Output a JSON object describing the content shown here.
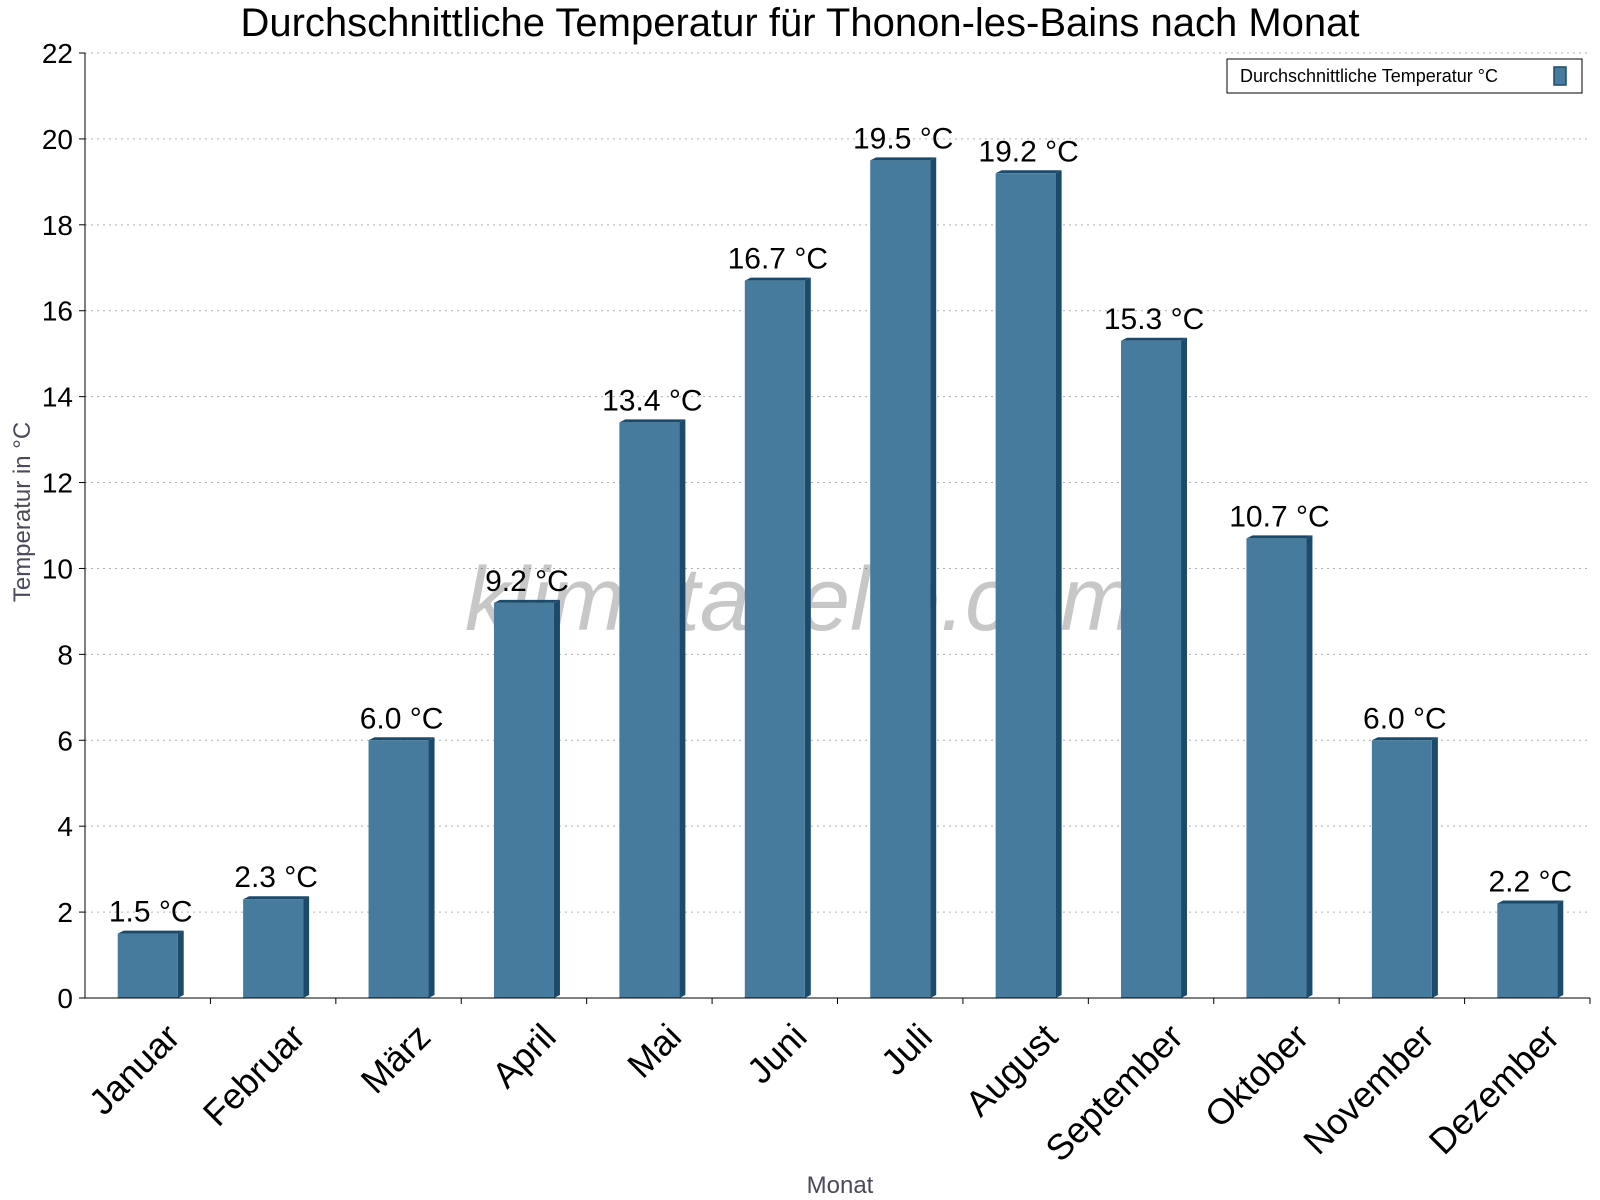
{
  "chart_data": {
    "type": "bar",
    "title": "Durchschnittliche Temperatur für Thonon-les-Bains nach Monat",
    "xlabel": "Monat",
    "ylabel": "Temperatur in °C",
    "categories": [
      "Januar",
      "Februar",
      "März",
      "April",
      "Mai",
      "Juni",
      "Juli",
      "August",
      "September",
      "Oktober",
      "November",
      "Dezember"
    ],
    "series": [
      {
        "name": "Durchschnittliche Temperatur °C",
        "values": [
          1.5,
          2.3,
          6.0,
          9.2,
          13.4,
          16.7,
          19.5,
          19.2,
          15.3,
          10.7,
          6.0,
          2.2
        ],
        "labels": [
          "1.5 °C",
          "2.3 °C",
          "6.0 °C",
          "9.2 °C",
          "13.4 °C",
          "16.7 °C",
          "19.5 °C",
          "19.2 °C",
          "15.3 °C",
          "10.7 °C",
          "6.0 °C",
          "2.2 °C"
        ],
        "color": "#467b9d",
        "edge_color": "#1b4a6b"
      }
    ],
    "ylim": [
      0,
      22
    ],
    "yticks": [
      0,
      2,
      4,
      6,
      8,
      10,
      12,
      14,
      16,
      18,
      20,
      22
    ],
    "grid": true,
    "legend_position": "top-right",
    "watermark": "klimatabelle.com"
  }
}
